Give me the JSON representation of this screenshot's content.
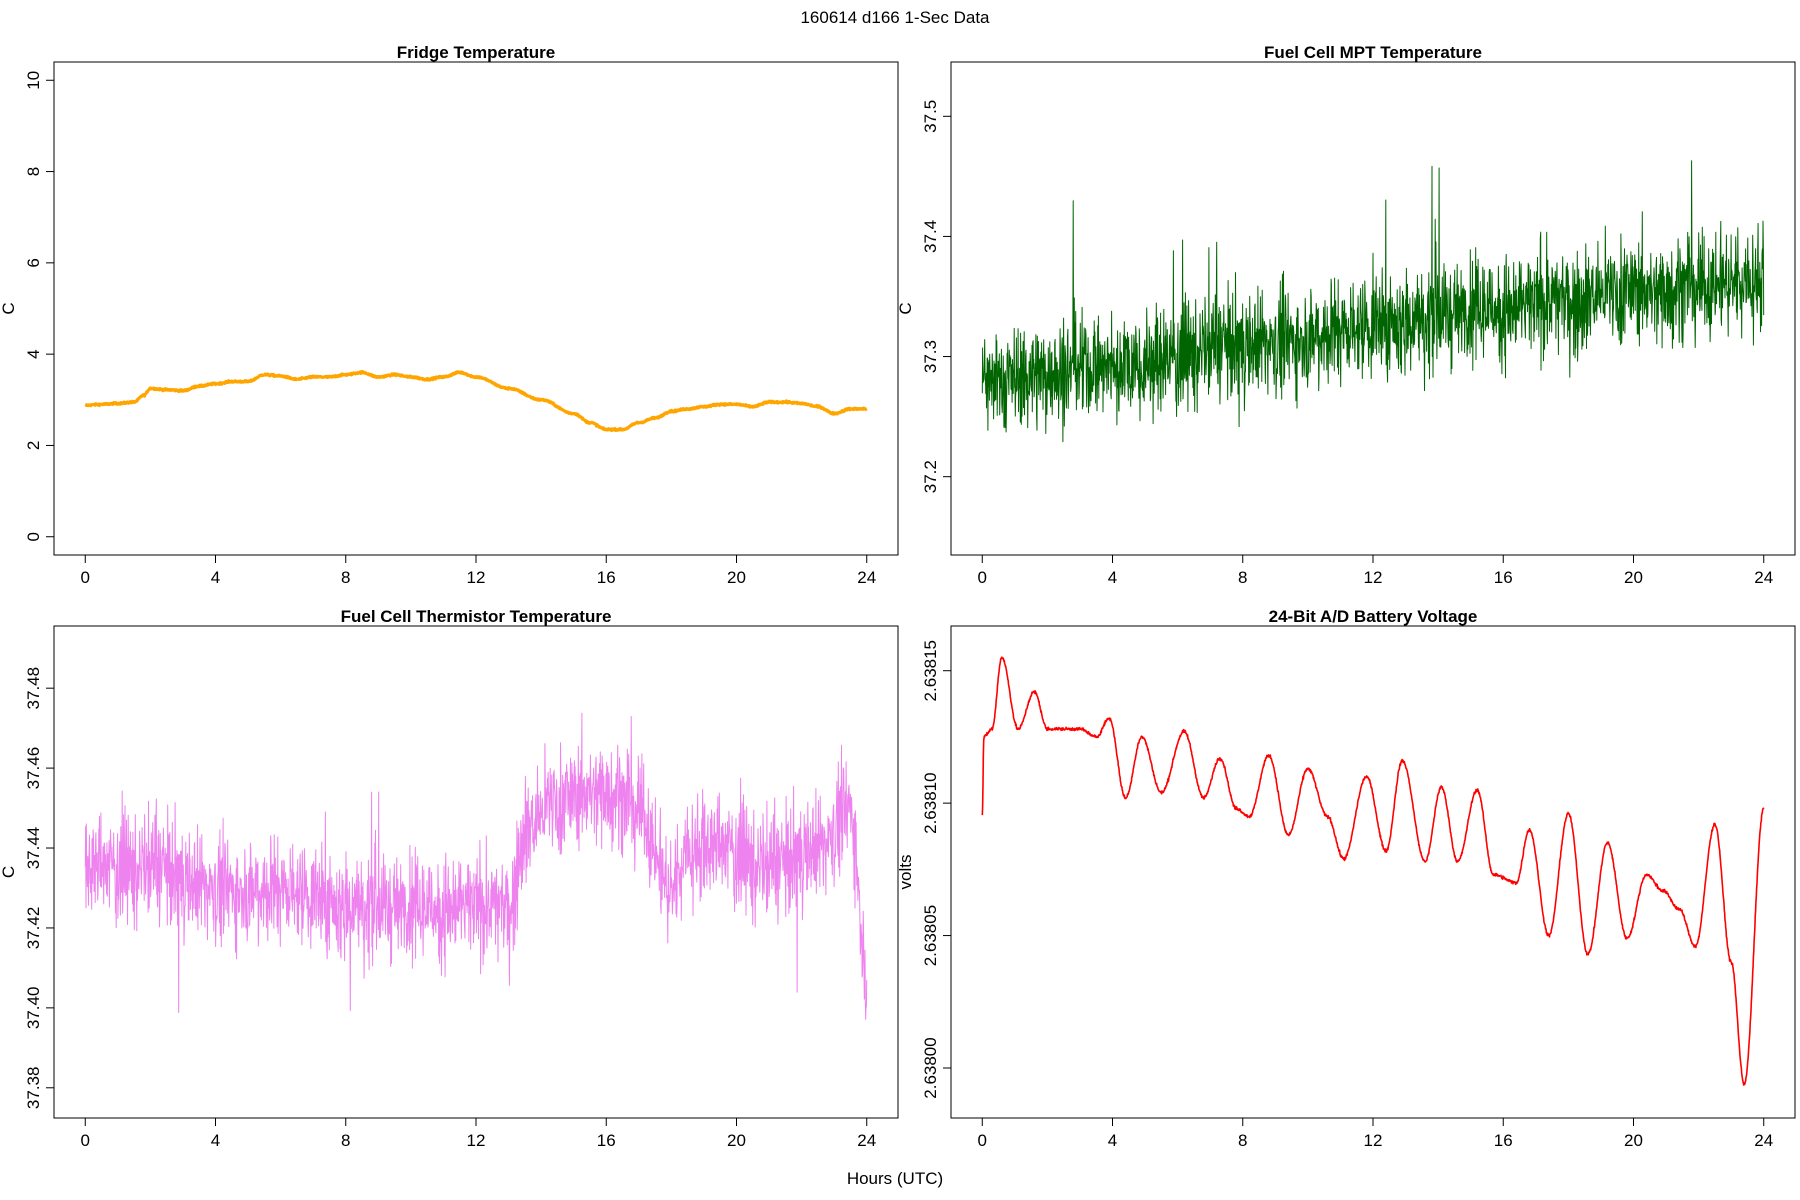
{
  "suptitle": "160614   d166   1-Sec Data",
  "xlabel": "Hours (UTC)",
  "chart_data": [
    {
      "type": "line",
      "title": "Fridge Temperature",
      "ylabel": "C",
      "color": "#FFA500",
      "xlim": [
        0,
        24
      ],
      "ylim": [
        0,
        10
      ],
      "xticks": [
        0,
        4,
        8,
        12,
        16,
        20,
        24
      ],
      "yticks": [
        0,
        2,
        4,
        6,
        8,
        10
      ],
      "ytick_labels": [
        "0",
        "2",
        "4",
        "6",
        "8",
        "10"
      ],
      "noise": 0.02,
      "x": [
        0,
        0.5,
        1,
        1.5,
        1.8,
        2,
        2.5,
        3,
        3.5,
        4,
        4.5,
        5,
        5.5,
        6,
        6.5,
        7,
        7.5,
        8,
        8.5,
        9,
        9.5,
        10,
        10.5,
        11,
        11.5,
        12,
        13,
        14,
        15,
        15.5,
        16,
        16.5,
        17,
        17.5,
        18,
        18.5,
        19,
        19.5,
        20,
        20.5,
        21,
        21.5,
        22,
        22.5,
        23,
        23.5,
        24
      ],
      "y": [
        2.88,
        2.9,
        2.92,
        2.95,
        3.1,
        3.25,
        3.22,
        3.2,
        3.3,
        3.35,
        3.4,
        3.4,
        3.55,
        3.52,
        3.45,
        3.5,
        3.5,
        3.55,
        3.6,
        3.5,
        3.55,
        3.5,
        3.45,
        3.5,
        3.6,
        3.5,
        3.25,
        3.0,
        2.7,
        2.5,
        2.35,
        2.35,
        2.5,
        2.6,
        2.75,
        2.8,
        2.85,
        2.9,
        2.9,
        2.85,
        2.95,
        2.95,
        2.92,
        2.85,
        2.7,
        2.8,
        2.8
      ]
    },
    {
      "type": "line",
      "title": "Fuel Cell MPT Temperature",
      "ylabel": "C",
      "color": "#006400",
      "xlim": [
        0,
        24
      ],
      "ylim": [
        37.15,
        37.53
      ],
      "xticks": [
        0,
        4,
        8,
        12,
        16,
        20,
        24
      ],
      "yticks": [
        37.2,
        37.3,
        37.4,
        37.5
      ],
      "ytick_labels": [
        "37.2",
        "37.3",
        "37.4",
        "37.5"
      ],
      "noise": 0.09,
      "x": [
        0,
        4,
        8,
        12,
        16,
        20,
        24
      ],
      "y": [
        37.28,
        37.29,
        37.31,
        37.325,
        37.34,
        37.355,
        37.365
      ]
    },
    {
      "type": "line",
      "title": "Fuel Cell Thermistor Temperature",
      "ylabel": "C",
      "color": "#EE82EE",
      "xlim": [
        0,
        24
      ],
      "ylim": [
        37.377,
        37.491
      ],
      "xticks": [
        0,
        4,
        8,
        12,
        16,
        20,
        24
      ],
      "yticks": [
        37.38,
        37.4,
        37.42,
        37.44,
        37.46,
        37.48
      ],
      "ytick_labels": [
        "37.38",
        "37.40",
        "37.42",
        "37.44",
        "37.46",
        "37.48"
      ],
      "noise": 0.028,
      "x": [
        0,
        2,
        4,
        6,
        8,
        10,
        12,
        13,
        13.5,
        14.5,
        16,
        17,
        18,
        18.5,
        19.5,
        21,
        22.5,
        23.5,
        24
      ],
      "y": [
        37.435,
        37.435,
        37.43,
        37.43,
        37.425,
        37.425,
        37.425,
        37.425,
        37.445,
        37.452,
        37.455,
        37.45,
        37.43,
        37.44,
        37.44,
        37.435,
        37.44,
        37.45,
        37.41
      ]
    },
    {
      "type": "line",
      "title": "24-Bit A/D Battery Voltage",
      "ylabel": "volts",
      "color": "#FF0000",
      "xlim": [
        0,
        24
      ],
      "ylim": [
        2.637988,
        2.63816
      ],
      "xticks": [
        0,
        4,
        8,
        12,
        16,
        20,
        24
      ],
      "yticks": [
        2.638,
        2.63805,
        2.6381,
        2.63815
      ],
      "ytick_labels": [
        "2.63800",
        "2.63805",
        "2.63810",
        "2.63815"
      ],
      "noise": 6e-07,
      "x": [
        0,
        0.05,
        0.3,
        0.6,
        1.1,
        1.6,
        2.0,
        2.5,
        3.0,
        3.5,
        3.9,
        4.4,
        4.9,
        5.5,
        6.2,
        6.8,
        7.3,
        7.8,
        8.2,
        8.8,
        9.4,
        10.0,
        10.6,
        11.1,
        11.8,
        12.4,
        12.9,
        13.6,
        14.1,
        14.6,
        15.2,
        15.7,
        16.4,
        16.8,
        17.4,
        18.0,
        18.6,
        19.2,
        19.8,
        20.4,
        20.9,
        21.4,
        21.9,
        22.5,
        23.0,
        23.4,
        24.0
      ],
      "y": [
        2.638095,
        2.638125,
        2.638128,
        2.638155,
        2.638128,
        2.638142,
        2.638128,
        2.638128,
        2.638128,
        2.638125,
        2.638132,
        2.638102,
        2.638125,
        2.638104,
        2.638127,
        2.638102,
        2.638117,
        2.638098,
        2.638095,
        2.638118,
        2.638088,
        2.638113,
        2.638095,
        2.638079,
        2.63811,
        2.638082,
        2.638116,
        2.638078,
        2.638106,
        2.638078,
        2.638105,
        2.638073,
        2.63807,
        2.63809,
        2.63805,
        2.638096,
        2.638043,
        2.638085,
        2.638049,
        2.638073,
        2.638067,
        2.63806,
        2.638046,
        2.638092,
        2.63804,
        2.637994,
        2.638098
      ]
    }
  ]
}
